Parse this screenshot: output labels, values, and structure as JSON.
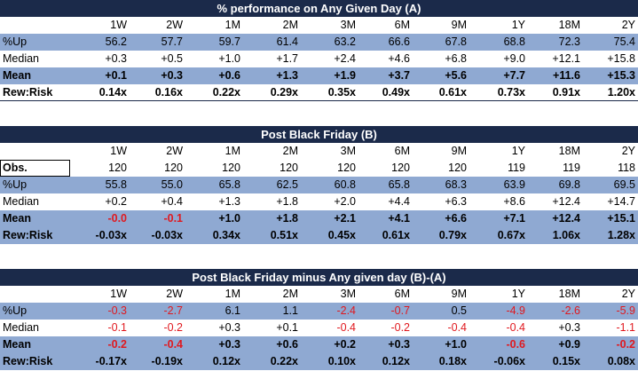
{
  "sections": [
    {
      "title": "% performance on Any Given Day (A)",
      "periods": [
        "1W",
        "2W",
        "1M",
        "2M",
        "3M",
        "6M",
        "9M",
        "1Y",
        "18M",
        "2Y"
      ],
      "rows": [
        {
          "label": "%Up",
          "values": [
            "56.2",
            "57.7",
            "59.7",
            "61.4",
            "63.2",
            "66.6",
            "67.8",
            "68.8",
            "72.3",
            "75.4"
          ],
          "neg": []
        },
        {
          "label": "Median",
          "values": [
            "+0.3",
            "+0.5",
            "+1.0",
            "+1.7",
            "+2.4",
            "+4.6",
            "+6.8",
            "+9.0",
            "+12.1",
            "+15.8"
          ],
          "neg": []
        },
        {
          "label": "Mean",
          "values": [
            "+0.1",
            "+0.3",
            "+0.6",
            "+1.3",
            "+1.9",
            "+3.7",
            "+5.6",
            "+7.7",
            "+11.6",
            "+15.3"
          ],
          "neg": []
        },
        {
          "label": "Rew:Risk",
          "values": [
            "0.14x",
            "0.16x",
            "0.22x",
            "0.29x",
            "0.35x",
            "0.49x",
            "0.61x",
            "0.73x",
            "0.91x",
            "1.20x"
          ],
          "neg": []
        }
      ]
    },
    {
      "title": "Post Black Friday (B)",
      "periods": [
        "1W",
        "2W",
        "1M",
        "2M",
        "3M",
        "6M",
        "9M",
        "1Y",
        "18M",
        "2Y"
      ],
      "rows": [
        {
          "label": "Obs.",
          "values": [
            "120",
            "120",
            "120",
            "120",
            "120",
            "120",
            "120",
            "119",
            "119",
            "118"
          ],
          "neg": []
        },
        {
          "label": "%Up",
          "values": [
            "55.8",
            "55.0",
            "65.8",
            "62.5",
            "60.8",
            "65.8",
            "68.3",
            "63.9",
            "69.8",
            "69.5"
          ],
          "neg": []
        },
        {
          "label": "Median",
          "values": [
            "+0.2",
            "+0.4",
            "+1.3",
            "+1.8",
            "+2.0",
            "+4.4",
            "+6.3",
            "+8.6",
            "+12.4",
            "+14.7"
          ],
          "neg": []
        },
        {
          "label": "Mean",
          "values": [
            "-0.0",
            "-0.1",
            "+1.0",
            "+1.8",
            "+2.1",
            "+4.1",
            "+6.6",
            "+7.1",
            "+12.4",
            "+15.1"
          ],
          "neg": [
            0,
            1
          ]
        },
        {
          "label": "Rew:Risk",
          "values": [
            "-0.03x",
            "-0.03x",
            "0.34x",
            "0.51x",
            "0.45x",
            "0.61x",
            "0.79x",
            "0.67x",
            "1.06x",
            "1.28x"
          ],
          "neg": []
        }
      ]
    },
    {
      "title": "Post Black Friday minus Any given day (B)-(A)",
      "periods": [
        "1W",
        "2W",
        "1M",
        "2M",
        "3M",
        "6M",
        "9M",
        "1Y",
        "18M",
        "2Y"
      ],
      "rows": [
        {
          "label": "%Up",
          "values": [
            "-0.3",
            "-2.7",
            "6.1",
            "1.1",
            "-2.4",
            "-0.7",
            "0.5",
            "-4.9",
            "-2.6",
            "-5.9"
          ],
          "neg": [
            0,
            1,
            4,
            5,
            7,
            8,
            9
          ]
        },
        {
          "label": "Median",
          "values": [
            "-0.1",
            "-0.2",
            "+0.3",
            "+0.1",
            "-0.4",
            "-0.2",
            "-0.4",
            "-0.4",
            "+0.3",
            "-1.1"
          ],
          "neg": [
            0,
            1,
            4,
            5,
            6,
            7,
            9
          ]
        },
        {
          "label": "Mean",
          "values": [
            "-0.2",
            "-0.4",
            "+0.3",
            "+0.6",
            "+0.2",
            "+0.3",
            "+1.0",
            "-0.6",
            "+0.9",
            "-0.2"
          ],
          "neg": [
            0,
            1,
            7,
            9
          ]
        },
        {
          "label": "Rew:Risk",
          "values": [
            "-0.17x",
            "-0.19x",
            "0.12x",
            "0.22x",
            "0.10x",
            "0.12x",
            "0.18x",
            "-0.06x",
            "0.15x",
            "0.08x"
          ],
          "neg": []
        }
      ]
    }
  ],
  "colors": {
    "header_bg": "#1b2a4a",
    "band_bg": "#8fa9d2",
    "negative": "#e0191f"
  }
}
